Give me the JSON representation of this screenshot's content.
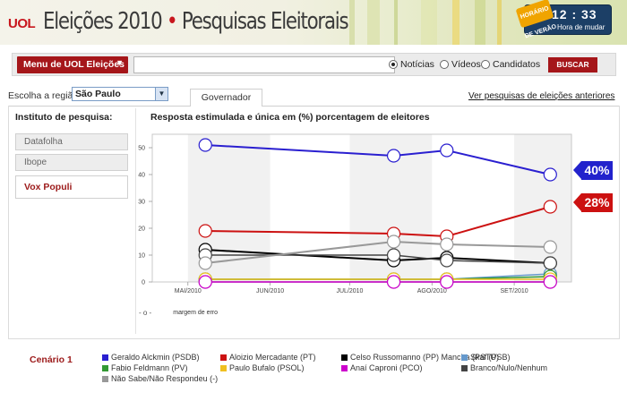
{
  "header": {
    "logo": "UOL",
    "title_part1": "Eleições 2010",
    "title_sep": "•",
    "title_part2": "Pesquisas Eleitorais",
    "clock_badge": "HORÁRIO DE VERÃO",
    "clock_time": "12 : 33",
    "clock_label": "Hora de mudar"
  },
  "search": {
    "menu_label": "Menu de UOL Eleições",
    "placeholder": "",
    "options": [
      "Notícias",
      "Vídeos",
      "Candidatos"
    ],
    "selected": "Notícias",
    "button": "BUSCAR"
  },
  "region": {
    "label": "Escolha a região",
    "selected": "São Paulo"
  },
  "tabs": {
    "active": "Governador"
  },
  "previous_link": "Ver pesquisas de eleições anteriores",
  "institutes": {
    "label": "Instituto de pesquisa:",
    "items": [
      "Datafolha",
      "Ibope",
      "Vox Populi"
    ],
    "active": "Vox Populi"
  },
  "chart_title": "Resposta estimulada e única em (%) porcentagem de eleitores",
  "margin_note": "margem de erro",
  "flags": {
    "top": "40%",
    "second": "28%"
  },
  "colors": {
    "accent_red": "#a5161a",
    "flag_blue": "#2222cc",
    "flag_red": "#cc1111"
  },
  "chart_data": {
    "type": "line",
    "title": "",
    "xlabel": "",
    "ylabel": "",
    "ylim": [
      0,
      55
    ],
    "x_ticks": [
      "MAI/2010",
      "JUN/2010",
      "JUL/2010",
      "AGO/2010",
      "SET/2010"
    ],
    "y_ticks": [
      0,
      10,
      20,
      30,
      40,
      50
    ],
    "grid": true,
    "dates": [
      "2010-05-15",
      "2010-07-25",
      "2010-08-14",
      "2010-09-22"
    ],
    "series": [
      {
        "name": "Geraldo Alckmin (PSDB)",
        "color": "#2a1fd0",
        "values": [
          51,
          47,
          49,
          40
        ]
      },
      {
        "name": "Aloizio Mercadante (PT)",
        "color": "#cc1111",
        "values": [
          19,
          18,
          17,
          28
        ]
      },
      {
        "name": "Celso Russomanno (PP)",
        "color": "#000000",
        "values": [
          12,
          8,
          9,
          7
        ]
      },
      {
        "name": "Skaf (PSB)",
        "color": "#6699cc",
        "values": [
          1,
          1,
          1,
          3
        ]
      },
      {
        "name": "Fabio Feldmann (PV)",
        "color": "#339933",
        "values": [
          1,
          1,
          1,
          2
        ]
      },
      {
        "name": "Paulo Bufalo (PSOL)",
        "color": "#f0c020",
        "values": [
          1,
          1,
          1,
          1
        ]
      },
      {
        "name": "Mancha (PSTU)",
        "color": "#888888",
        "values": [
          0,
          0,
          0,
          0
        ]
      },
      {
        "name": "Anaí Caproni (PCO)",
        "color": "#cc00cc",
        "values": [
          0,
          0,
          0,
          0
        ]
      },
      {
        "name": "Branco/Nulo/Nenhum",
        "color": "#444444",
        "values": [
          10,
          10,
          8,
          7
        ]
      },
      {
        "name": "Não Sabe/Não Respondeu (-)",
        "color": "#999999",
        "values": [
          7,
          15,
          14,
          13
        ]
      }
    ]
  },
  "legend": {
    "title": "Cenário 1",
    "items": [
      {
        "label": "Geraldo Alckmin (PSDB)",
        "color": "#2a1fd0"
      },
      {
        "label": "Aloizio Mercadante (PT)",
        "color": "#cc1111"
      },
      {
        "label": "Celso Russomanno (PP) Mancha (PSTU)",
        "color": "#000000"
      },
      {
        "label": "Skaf (PSB)",
        "color": "#6699cc"
      },
      {
        "label": "Fabio Feldmann (PV)",
        "color": "#339933"
      },
      {
        "label": "Paulo Bufalo (PSOL)",
        "color": "#f0c020"
      },
      {
        "label": "Anaí Caproni (PCO)",
        "color": "#cc00cc"
      },
      {
        "label": "Branco/Nulo/Nenhum",
        "color": "#444444"
      },
      {
        "label": "Não Sabe/Não Respondeu (-)",
        "color": "#999999"
      }
    ]
  }
}
